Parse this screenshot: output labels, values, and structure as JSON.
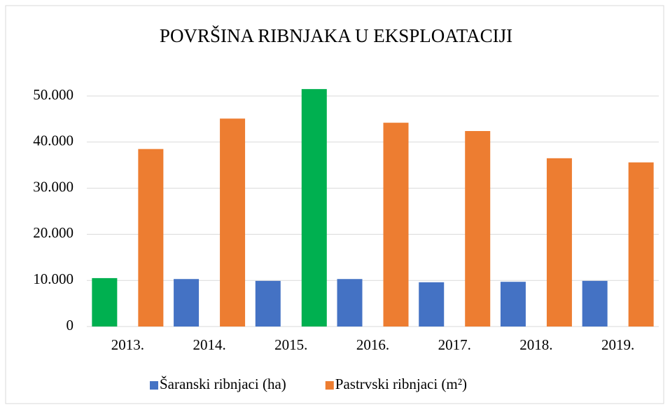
{
  "chart_data": {
    "type": "bar",
    "title": "POVRŠINA RIBNJAKA U EKSPLOATACIJI",
    "categories": [
      "2013.",
      "2014.",
      "2015.",
      "2016.",
      "2017.",
      "2018.",
      "2019."
    ],
    "series": [
      {
        "name": "Šaranski ribnjaci (ha)",
        "color": "#4472c4",
        "colors": [
          "#00b050",
          "#4472c4",
          "#4472c4",
          "#4472c4",
          "#4472c4",
          "#4472c4",
          "#4472c4"
        ],
        "values": [
          10500,
          10300,
          9900,
          10300,
          9600,
          9700,
          9900
        ]
      },
      {
        "name": "Pastrvski ribnjaci (m²)",
        "color": "#ed7d31",
        "colors": [
          "#ed7d31",
          "#ed7d31",
          "#00b050",
          "#ed7d31",
          "#ed7d31",
          "#ed7d31",
          "#ed7d31"
        ],
        "values": [
          38500,
          45100,
          51500,
          44200,
          42400,
          36500,
          35600
        ]
      }
    ],
    "ylim": [
      0,
      50000
    ],
    "yticks": [
      0,
      {
        "value": 10000,
        "label": "10.000"
      },
      {
        "value": 20000,
        "label": "20.000"
      },
      {
        "value": 30000,
        "label": "30.000"
      },
      {
        "value": 40000,
        "label": "40.000"
      },
      {
        "value": 50000,
        "label": "50.000"
      }
    ],
    "grid": true,
    "legend": "bottom"
  }
}
